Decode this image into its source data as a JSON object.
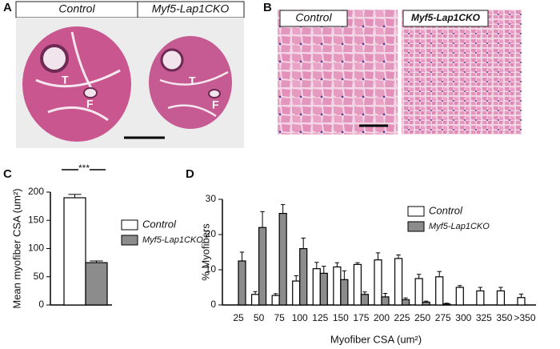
{
  "panels": {
    "A": {
      "letter": "A",
      "labels": [
        "Control",
        "Myf5-Lap1CKO"
      ],
      "marks": [
        "T",
        "F",
        "T",
        "F"
      ]
    },
    "B": {
      "letter": "B",
      "labels": [
        "Control",
        "Myf5-Lap1CKO"
      ]
    },
    "C": {
      "letter": "C"
    },
    "D": {
      "letter": "D"
    }
  },
  "chart_data": [
    {
      "type": "bar",
      "ylabel": "Mean myofiber CSA (um²)",
      "annotation": "***",
      "ylim": [
        0,
        200
      ],
      "yticks": [
        0,
        50,
        100,
        150,
        200
      ],
      "series": [
        {
          "name": "Control",
          "color": "#ffffff",
          "values": [
            190
          ],
          "errors": [
            6
          ]
        },
        {
          "name": "Myf5-Lap1CKO",
          "color": "#8c8c8c",
          "values": [
            75
          ],
          "errors": [
            3
          ]
        }
      ]
    },
    {
      "type": "grouped-bar",
      "ylabel": "% Myofibers",
      "xlabel": "Myofiber CSA (um²)",
      "categories": [
        "25",
        "50",
        "75",
        "100",
        "125",
        "150",
        "175",
        "200",
        "225",
        "250",
        "275",
        "300",
        "325",
        "350",
        ">350"
      ],
      "ylim": [
        0,
        30
      ],
      "yticks": [
        0,
        10,
        20,
        30
      ],
      "series": [
        {
          "name": "Control",
          "color": "#ffffff",
          "values": [
            0,
            3,
            2.7,
            6.8,
            10.3,
            10.8,
            11.5,
            12.8,
            13.2,
            7.5,
            8,
            5,
            4,
            4,
            2.1
          ],
          "errors": [
            0,
            0.8,
            0.5,
            1.5,
            1.8,
            1.2,
            0.5,
            2,
            1,
            1.2,
            1.5,
            0.5,
            1,
            1,
            1
          ]
        },
        {
          "name": "Myf5-Lap1CKO",
          "color": "#8c8c8c",
          "values": [
            12.5,
            22,
            26,
            16,
            9,
            7.2,
            3,
            2.3,
            1.5,
            0.8,
            0.3,
            0,
            0,
            0,
            0
          ],
          "errors": [
            2.5,
            4.5,
            2.5,
            3,
            2,
            2.5,
            0.7,
            1,
            0.5,
            0.3,
            0.2,
            0,
            0,
            0,
            0
          ]
        }
      ]
    }
  ]
}
